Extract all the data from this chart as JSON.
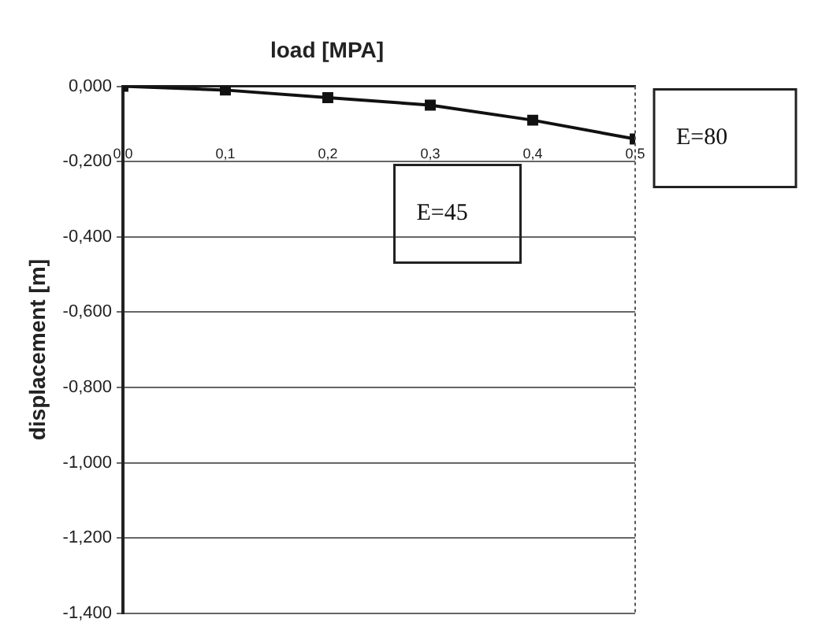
{
  "chart_data": {
    "type": "line",
    "xlabel": "load [MPA]",
    "ylabel": "displacement [m]",
    "x": [
      0,
      0.1,
      0.2,
      0.3,
      0.4,
      0.5
    ],
    "series": [
      {
        "color": "#111111",
        "values": [
          0,
          -0.01,
          -0.03,
          -0.05,
          -0.09,
          -0.14
        ]
      }
    ],
    "xlim": [
      0,
      0.5
    ],
    "xticks": [
      {
        "value": 0,
        "label": "0,0"
      },
      {
        "value": 0.1,
        "label": "0,1"
      },
      {
        "value": 0.2,
        "label": "0,2"
      },
      {
        "value": 0.3,
        "label": "0,3"
      },
      {
        "value": 0.4,
        "label": "0,4"
      },
      {
        "value": 0.5,
        "label": "0,5"
      }
    ],
    "ylim": [
      -1.4,
      0
    ],
    "yticks": [
      {
        "value": 0,
        "label": "0,000"
      },
      {
        "value": -0.2,
        "label": "-0,200"
      },
      {
        "value": -0.4,
        "label": "-0,400"
      },
      {
        "value": -0.6,
        "label": "-0,600"
      },
      {
        "value": -0.8,
        "label": "-0,800"
      },
      {
        "value": -1,
        "label": "-1,000"
      },
      {
        "value": -1.2,
        "label": "-1,200"
      },
      {
        "value": -1.4,
        "label": "-1,400"
      }
    ],
    "annotations": [
      "E=45",
      "E=80"
    ],
    "grid": "y",
    "marker": "square",
    "line_style": "solid",
    "legend": false
  }
}
